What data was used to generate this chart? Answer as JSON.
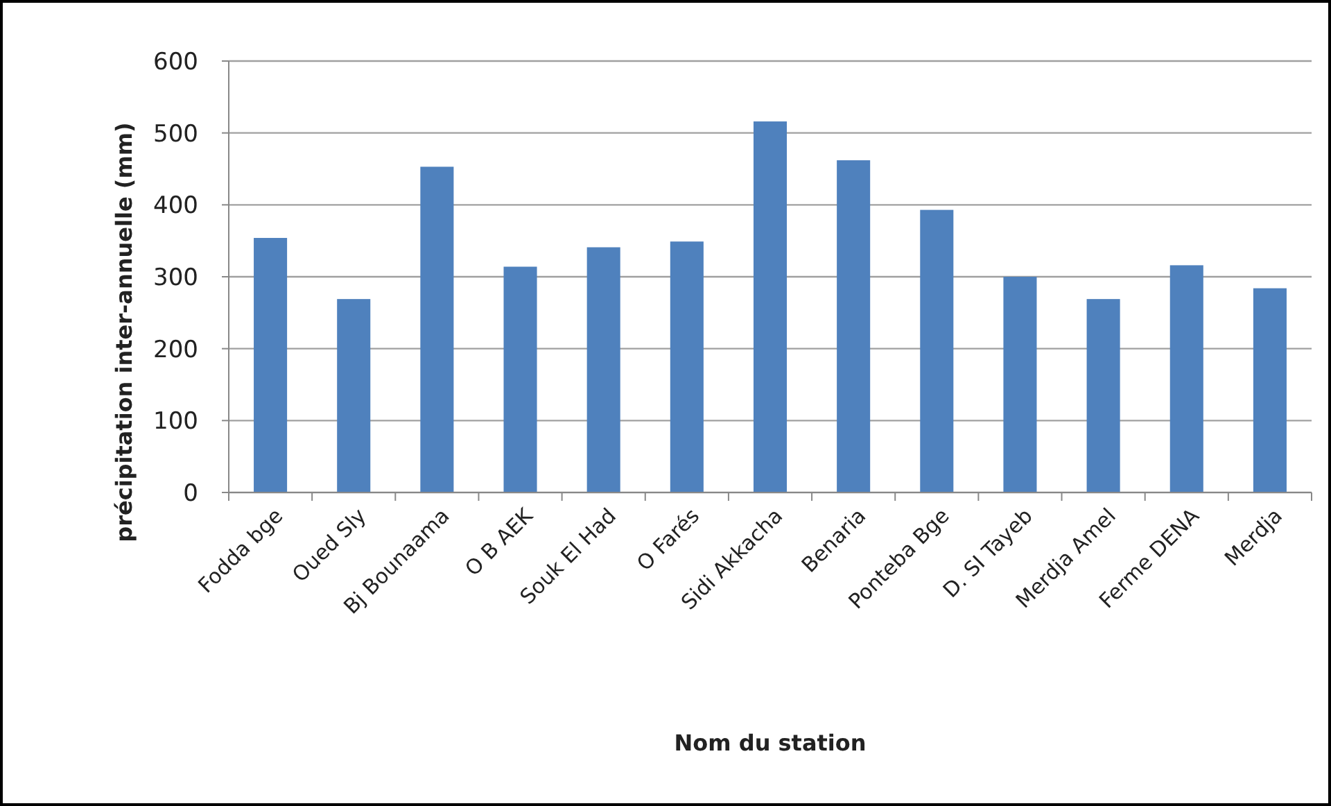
{
  "chart_data": {
    "type": "bar",
    "xlabel": "Nom du station",
    "ylabel": "précipitation inter-annuelle (mm)",
    "categories": [
      "Fodda bge",
      "Oued Sly",
      "Bj Bounaama",
      "O B AEK",
      "Souk El Had",
      "O Farés",
      "Sidi Akkacha",
      "Benaria",
      "Ponteba Bge",
      "D. SI Tayeb",
      "Merdja Amel",
      "Ferme DENA",
      "Merdja"
    ],
    "values": [
      354,
      269,
      453,
      314,
      341,
      349,
      516,
      462,
      393,
      300,
      269,
      316,
      284
    ],
    "color": "#4f81bd",
    "ylim": [
      0,
      600
    ],
    "yticks": [
      0,
      100,
      200,
      300,
      400,
      500,
      600
    ],
    "grid": "y"
  }
}
